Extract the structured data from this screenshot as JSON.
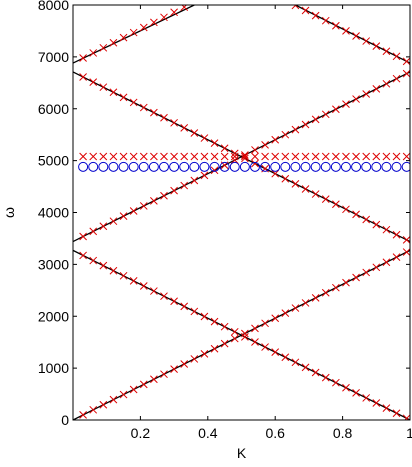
{
  "chart_data": {
    "type": "line",
    "title": "",
    "xlabel": "K",
    "ylabel": "ω",
    "xlim": [
      0.0,
      1.0
    ],
    "ylim": [
      0,
      8000
    ],
    "xticks": [
      0.2,
      0.4,
      0.6,
      0.8,
      1
    ],
    "xtick_labels": [
      "0.2",
      "0.4",
      "0.6",
      "0.8",
      "1"
    ],
    "yticks": [
      0,
      1000,
      2000,
      3000,
      4000,
      5000,
      6000,
      7000,
      8000
    ],
    "ytick_labels": [
      "0",
      "1000",
      "2000",
      "3000",
      "4000",
      "5000",
      "6000",
      "7000",
      "8000"
    ],
    "grid": false,
    "series": [
      {
        "style": "line",
        "color": "#000000",
        "x": [
          0.0,
          1.0
        ],
        "y": [
          0,
          3270
        ]
      },
      {
        "style": "line",
        "color": "#000000",
        "x": [
          0.0,
          1.0
        ],
        "y": [
          3270,
          0
        ]
      },
      {
        "style": "line",
        "color": "#000000",
        "x": [
          0.0,
          1.0
        ],
        "y": [
          3440,
          6710
        ]
      },
      {
        "style": "line",
        "color": "#000000",
        "x": [
          0.0,
          1.0
        ],
        "y": [
          6710,
          3440
        ]
      },
      {
        "style": "line",
        "color": "#000000",
        "x": [
          0.0,
          0.36
        ],
        "y": [
          6880,
          8000
        ]
      },
      {
        "style": "line",
        "color": "#000000",
        "x": [
          0.66,
          1.0
        ],
        "y": [
          8000,
          6880
        ]
      },
      {
        "style": "markers",
        "marker": "x",
        "color": "#dd0000",
        "x_start": 0.03,
        "x_step": 0.03,
        "count": 33,
        "formula": "3270*k"
      },
      {
        "style": "markers",
        "marker": "x",
        "color": "#dd0000",
        "x_start": 0.03,
        "x_step": 0.03,
        "count": 33,
        "formula": "3270*(1-k)"
      },
      {
        "style": "markers",
        "marker": "x",
        "color": "#dd0000",
        "x_start": 0.03,
        "x_step": 0.03,
        "count": 33,
        "formula": "3440+3270*k"
      },
      {
        "style": "markers",
        "marker": "x",
        "color": "#dd0000",
        "x_start": 0.03,
        "x_step": 0.03,
        "count": 33,
        "formula": "6710-3270*k"
      },
      {
        "style": "markers",
        "marker": "x",
        "color": "#dd0000",
        "x_start": 0.03,
        "x_step": 0.03,
        "count": 11,
        "formula": "6880+3270*k"
      },
      {
        "style": "markers",
        "marker": "x",
        "color": "#dd0000",
        "x_start": 0.66,
        "x_step": 0.03,
        "count": 12,
        "formula": "6880+3270*(1-k)"
      },
      {
        "style": "markers",
        "marker": "x",
        "color": "#dd0000",
        "x_start": 0.03,
        "x_step": 0.03,
        "count": 33,
        "formula": "5080"
      },
      {
        "style": "markers",
        "marker": "o",
        "color": "#0000cc",
        "x_start": 0.03,
        "x_step": 0.03,
        "count": 33,
        "formula": "4880"
      }
    ]
  }
}
